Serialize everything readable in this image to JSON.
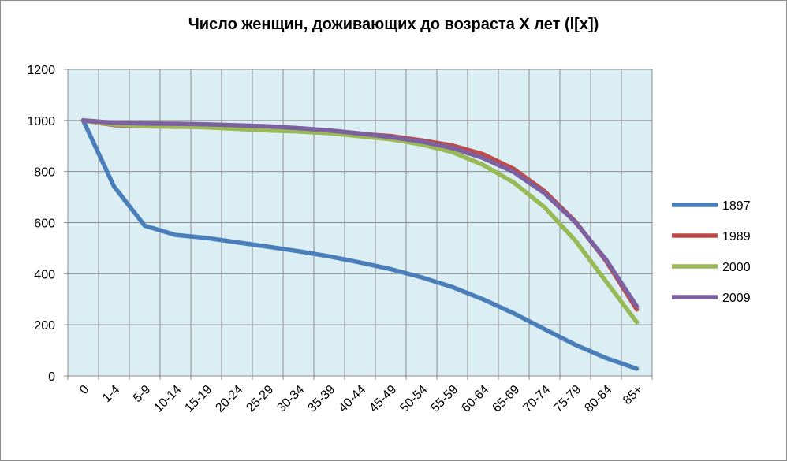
{
  "chart_data": {
    "type": "line",
    "title": "Число женщин, доживающих до возраста Х лет (l[x])",
    "xlabel": "",
    "ylabel": "",
    "categories": [
      "0",
      "1-4",
      "5-9",
      "10-14",
      "15-19",
      "20-24",
      "25-29",
      "30-34",
      "35-39",
      "40-44",
      "45-49",
      "50-54",
      "55-59",
      "60-64",
      "65-69",
      "70-74",
      "75-79",
      "80-84",
      "85+"
    ],
    "ylim": [
      0,
      1200
    ],
    "yticks": [
      0,
      200,
      400,
      600,
      800,
      1000,
      1200
    ],
    "grid": true,
    "legend": "right",
    "plot_background": "#dbeef4",
    "series": [
      {
        "name": "1897",
        "color": "#4a7ebb",
        "values": [
          1000,
          742,
          588,
          552,
          540,
          523,
          506,
          488,
          468,
          444,
          418,
          386,
          348,
          300,
          245,
          183,
          122,
          70,
          28
        ]
      },
      {
        "name": "1989",
        "color": "#be4b48",
        "values": [
          1000,
          982,
          977,
          976,
          974,
          970,
          966,
          962,
          956,
          947,
          939,
          922,
          902,
          868,
          810,
          723,
          605,
          450,
          260
        ]
      },
      {
        "name": "2000",
        "color": "#98b954",
        "values": [
          1000,
          984,
          978,
          977,
          973,
          967,
          961,
          957,
          950,
          938,
          926,
          906,
          876,
          826,
          757,
          660,
          530,
          370,
          210
        ]
      },
      {
        "name": "2009",
        "color": "#7d60a0",
        "values": [
          1000,
          991,
          988,
          987,
          985,
          981,
          977,
          970,
          961,
          949,
          935,
          917,
          892,
          853,
          798,
          715,
          602,
          455,
          272
        ]
      }
    ]
  }
}
